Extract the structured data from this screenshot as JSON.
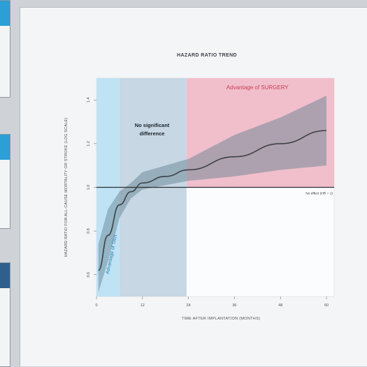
{
  "chart_data": {
    "type": "line",
    "title": "HAZARD RATIO TREND",
    "xlabel": "TIME AFTER IMPLANTATION (MONTHS)",
    "ylabel": "HAZARD RATIO FOR ALL-CAUSE MORTALITY OR STROKE (LOG SCALE)",
    "x_ticks": [
      "0",
      "12",
      "24",
      "36",
      "48",
      "60"
    ],
    "y_ticks": [
      "0.6",
      "0.8",
      "1.0",
      "1.2",
      "1.4"
    ],
    "xlim": [
      0,
      62
    ],
    "ylim": [
      0.5,
      1.5
    ],
    "regions": [
      {
        "label": "Advantage of TAVI",
        "x_start": 0,
        "x_end": 6,
        "color": "#bfe3f5"
      },
      {
        "label": "No significant difference",
        "x_start": 6,
        "x_end": 23.5,
        "color": "#c7d7e4"
      },
      {
        "label": "Advantage of SURGERY",
        "x_start": 23.5,
        "x_end": 62,
        "color": "#f1bfcc"
      }
    ],
    "reference_label": "No effect (HR = 1)",
    "reference_value": 1.0,
    "series": [
      {
        "x": [
          0.5,
          3,
          6,
          9,
          12,
          18,
          24,
          36,
          48,
          60
        ],
        "y": [
          0.62,
          0.78,
          0.92,
          0.98,
          1.02,
          1.05,
          1.08,
          1.14,
          1.2,
          1.26
        ],
        "lower": [
          0.52,
          0.66,
          0.86,
          0.95,
          0.99,
          1.01,
          1.03,
          1.05,
          1.08,
          1.1
        ],
        "upper": [
          0.74,
          0.9,
          0.98,
          1.02,
          1.07,
          1.1,
          1.13,
          1.24,
          1.32,
          1.42
        ]
      }
    ],
    "colors": {
      "line": "#3d4145",
      "band": "#5d7c8c",
      "surgery_text": "#c83d58",
      "tavi_text": "#2e7aa8"
    },
    "grid": false
  }
}
